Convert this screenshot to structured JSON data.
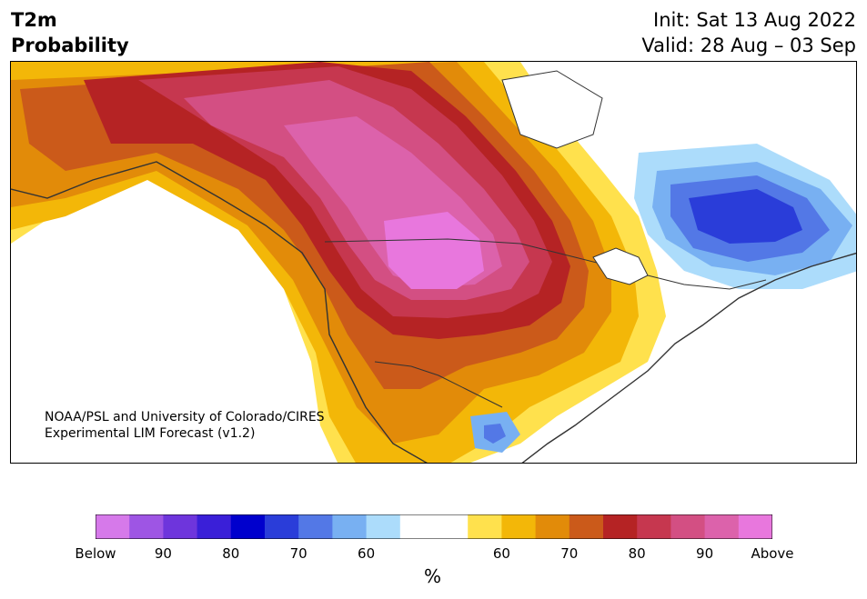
{
  "header": {
    "variable": "T2m",
    "product": "Probability",
    "init": "Init: Sat 13 Aug 2022",
    "valid": "Valid: 28 Aug – 03 Sep"
  },
  "credit": {
    "line1": "NOAA/PSL and University of Colorado/CIRES",
    "line2": "Experimental LIM Forecast (v1.2)"
  },
  "colorbar": {
    "unit": "%",
    "below_colors": [
      "#d679ea",
      "#9e55e4",
      "#6e35dc",
      "#3a1fd8",
      "#0000cd",
      "#2a3dd9",
      "#5378e6",
      "#78b0f2",
      "#acdcfb"
    ],
    "neutral_color": "#ffffff",
    "above_colors": [
      "#ffe14d",
      "#f3b708",
      "#e28b09",
      "#cb5a1a",
      "#b52324",
      "#c6374f",
      "#d34f83",
      "#dc62ab",
      "#e877dd"
    ],
    "labels": [
      "Below",
      "90",
      "80",
      "70",
      "60",
      "60",
      "70",
      "80",
      "90",
      "Above"
    ]
  },
  "map": {
    "region": "North America",
    "warm_core": "Northern Plains / Rockies (Above)",
    "cool_core": "Quebec / Labrador (Below)"
  }
}
